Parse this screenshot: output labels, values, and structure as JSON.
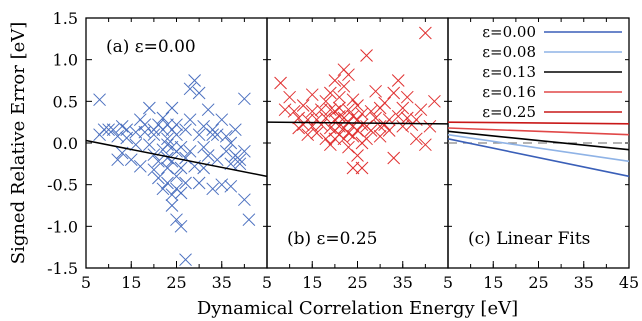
{
  "chart_data": [
    {
      "panel": "a",
      "type": "scatter",
      "annotation": "(a) ε=0.00",
      "marker": "x",
      "color": "#4a6fbf",
      "xlim": [
        5,
        45
      ],
      "ylim": [
        -1.5,
        1.5
      ],
      "points": [
        [
          8,
          0.52
        ],
        [
          8,
          0.1
        ],
        [
          9,
          0.16
        ],
        [
          10,
          0.16
        ],
        [
          11,
          0.16
        ],
        [
          12,
          0.08
        ],
        [
          12,
          -0.2
        ],
        [
          13,
          0.2
        ],
        [
          13,
          -0.12
        ],
        [
          14,
          0.16
        ],
        [
          14,
          0.06
        ],
        [
          15,
          -0.2
        ],
        [
          16,
          0.13
        ],
        [
          16,
          -0.02
        ],
        [
          17,
          0.28
        ],
        [
          17,
          -0.28
        ],
        [
          18,
          0.13
        ],
        [
          18,
          0.22
        ],
        [
          19,
          0.42
        ],
        [
          19,
          -0.02
        ],
        [
          20,
          0.1
        ],
        [
          20,
          0.16
        ],
        [
          20,
          -0.14
        ],
        [
          20,
          -0.32
        ],
        [
          21,
          0.22
        ],
        [
          21,
          -0.22
        ],
        [
          21,
          -0.42
        ],
        [
          22,
          0.16
        ],
        [
          22,
          -0.08
        ],
        [
          22,
          -0.55
        ],
        [
          23,
          0.22
        ],
        [
          23,
          0.05
        ],
        [
          23,
          -0.02
        ],
        [
          23,
          -0.18
        ],
        [
          23,
          -0.3
        ],
        [
          23,
          -0.48
        ],
        [
          24,
          0.42
        ],
        [
          24,
          0.16
        ],
        [
          24,
          -0.05
        ],
        [
          24,
          -0.22
        ],
        [
          24,
          -0.62
        ],
        [
          24,
          -0.75
        ],
        [
          25,
          0.22
        ],
        [
          25,
          0.1
        ],
        [
          25,
          -0.1
        ],
        [
          25,
          -0.4
        ],
        [
          25,
          -0.55
        ],
        [
          25,
          -0.92
        ],
        [
          26,
          -0.05
        ],
        [
          26,
          -0.3
        ],
        [
          26,
          -0.6
        ],
        [
          26,
          -1.0
        ],
        [
          27,
          0.16
        ],
        [
          27,
          -0.18
        ],
        [
          27,
          -0.48
        ],
        [
          27,
          -1.4
        ],
        [
          28,
          0.28
        ],
        [
          28,
          -0.1
        ],
        [
          28,
          0.65
        ],
        [
          29,
          0.75
        ],
        [
          29,
          -0.28
        ],
        [
          30,
          0.1
        ],
        [
          30,
          -0.48
        ],
        [
          30,
          0.6
        ],
        [
          31,
          0.2
        ],
        [
          31,
          -0.3
        ],
        [
          31,
          -0.05
        ],
        [
          32,
          -0.15
        ],
        [
          32,
          0.4
        ],
        [
          33,
          -0.55
        ],
        [
          33,
          0.16
        ],
        [
          34,
          -0.2
        ],
        [
          34,
          0.1
        ],
        [
          35,
          0.28
        ],
        [
          35,
          -0.5
        ],
        [
          36,
          -0.1
        ],
        [
          36,
          0.08
        ],
        [
          37,
          -0.25
        ],
        [
          37,
          -0.52
        ],
        [
          38,
          0.16
        ],
        [
          38,
          -0.15
        ],
        [
          39,
          -0.2
        ],
        [
          39,
          -0.25
        ],
        [
          40,
          0.53
        ],
        [
          40,
          -0.1
        ],
        [
          40,
          -0.68
        ],
        [
          41,
          -0.92
        ],
        [
          37,
          0.0
        ],
        [
          33,
          0.1
        ],
        [
          22,
          0.3
        ]
      ],
      "fit": [
        [
          5,
          0.03
        ],
        [
          45,
          -0.4
        ]
      ]
    },
    {
      "panel": "b",
      "type": "scatter",
      "annotation": "(b) ε=0.25",
      "marker": "x",
      "color": "#e03030",
      "xlim": [
        5,
        45
      ],
      "ylim": [
        -1.5,
        1.5
      ],
      "points": [
        [
          8,
          0.72
        ],
        [
          9,
          0.4
        ],
        [
          10,
          0.55
        ],
        [
          11,
          0.38
        ],
        [
          12,
          0.3
        ],
        [
          12,
          0.18
        ],
        [
          13,
          0.22
        ],
        [
          13,
          0.45
        ],
        [
          14,
          0.1
        ],
        [
          14,
          0.28
        ],
        [
          15,
          0.58
        ],
        [
          15,
          0.38
        ],
        [
          15,
          0.2
        ],
        [
          16,
          0.12
        ],
        [
          16,
          0.28
        ],
        [
          17,
          0.4
        ],
        [
          17,
          0.22
        ],
        [
          18,
          0.05
        ],
        [
          18,
          0.3
        ],
        [
          18,
          0.5
        ],
        [
          19,
          0.18
        ],
        [
          19,
          0.4
        ],
        [
          19,
          0.6
        ],
        [
          20,
          0.05
        ],
        [
          20,
          0.28
        ],
        [
          20,
          0.15
        ],
        [
          20,
          0.75
        ],
        [
          20,
          0.38
        ],
        [
          21,
          0.2
        ],
        [
          21,
          0.55
        ],
        [
          21,
          0.1
        ],
        [
          21,
          0.32
        ],
        [
          21,
          0.42
        ],
        [
          22,
          0.18
        ],
        [
          22,
          0.3
        ],
        [
          22,
          0.05
        ],
        [
          22,
          0.68
        ],
        [
          22,
          0.88
        ],
        [
          23,
          0.25
        ],
        [
          23,
          0.12
        ],
        [
          23,
          0.4
        ],
        [
          23,
          0.82
        ],
        [
          23,
          -0.05
        ],
        [
          24,
          0.2
        ],
        [
          24,
          0.32
        ],
        [
          24,
          0.52
        ],
        [
          24,
          0.08
        ],
        [
          25,
          0.28
        ],
        [
          25,
          0.15
        ],
        [
          25,
          -0.15
        ],
        [
          25,
          0.45
        ],
        [
          26,
          0.22
        ],
        [
          26,
          0.35
        ],
        [
          26,
          -0.3
        ],
        [
          27,
          0.05
        ],
        [
          27,
          0.2
        ],
        [
          27,
          1.05
        ],
        [
          28,
          0.15
        ],
        [
          28,
          0.38
        ],
        [
          29,
          0.3
        ],
        [
          29,
          0.62
        ],
        [
          30,
          0.2
        ],
        [
          30,
          0.42
        ],
        [
          31,
          0.48
        ],
        [
          31,
          0.22
        ],
        [
          32,
          0.15
        ],
        [
          32,
          0.28
        ],
        [
          33,
          0.6
        ],
        [
          34,
          0.32
        ],
        [
          34,
          0.75
        ],
        [
          35,
          0.42
        ],
        [
          35,
          0.2
        ],
        [
          36,
          0.3
        ],
        [
          36,
          0.55
        ],
        [
          37,
          0.22
        ],
        [
          38,
          0.28
        ],
        [
          38,
          0.05
        ],
        [
          39,
          0.4
        ],
        [
          40,
          1.32
        ],
        [
          40,
          -0.02
        ],
        [
          41,
          0.2
        ],
        [
          42,
          0.5
        ],
        [
          19,
          -0.02
        ],
        [
          24,
          -0.3
        ],
        [
          26,
          0.0
        ],
        [
          30,
          0.08
        ],
        [
          33,
          -0.18
        ]
      ],
      "fit": [
        [
          5,
          0.25
        ],
        [
          45,
          0.23
        ]
      ]
    },
    {
      "panel": "c",
      "type": "line",
      "annotation": "(c) Linear Fits",
      "xlim": [
        5,
        45
      ],
      "ylim": [
        -1.5,
        1.5
      ],
      "series": [
        {
          "name": "ε=0.00",
          "color": "#3a5fb8",
          "x": [
            5,
            45
          ],
          "y": [
            0.05,
            -0.4
          ]
        },
        {
          "name": "ε=0.08",
          "color": "#8fb3e6",
          "x": [
            5,
            45
          ],
          "y": [
            0.1,
            -0.22
          ]
        },
        {
          "name": "ε=0.13",
          "color": "#000000",
          "x": [
            5,
            45
          ],
          "y": [
            0.14,
            -0.08
          ]
        },
        {
          "name": "ε=0.16",
          "color": "#e04848",
          "x": [
            5,
            45
          ],
          "y": [
            0.18,
            0.1
          ]
        },
        {
          "name": "ε=0.25",
          "color": "#c81818",
          "x": [
            5,
            45
          ],
          "y": [
            0.25,
            0.23
          ]
        }
      ],
      "zero_line": {
        "style": "dashed",
        "color": "#888888",
        "y": 0
      }
    }
  ],
  "axes": {
    "ylabel": "Signed Relative Error [eV]",
    "xlabel": "Dynamical Correlation Energy [eV]",
    "yticks": [
      "-1.5",
      "-1.0",
      "-0.5",
      "0.0",
      "0.5",
      "1.0",
      "1.5"
    ],
    "xticks_a": [
      "5",
      "15",
      "25",
      "35"
    ],
    "xticks_b": [
      "5",
      "15",
      "25",
      "35"
    ],
    "xticks_c": [
      "5",
      "15",
      "25",
      "35",
      "45"
    ]
  }
}
